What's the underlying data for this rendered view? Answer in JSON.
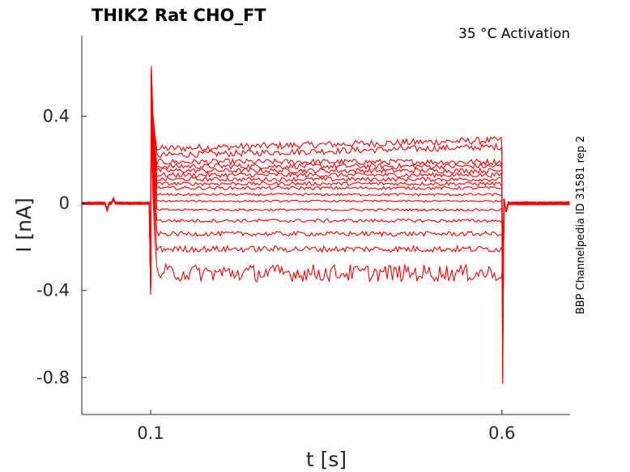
{
  "chart_data": {
    "type": "line",
    "title": "THIK2  Rat  CHO_FT",
    "subtitle": "35 °C  Activation",
    "xlabel": "t [s]",
    "ylabel": "I [nA]",
    "side_label": "BBP Channelpedia ID 31581 rep 2",
    "xlim": [
      0.002,
      0.697
    ],
    "ylim": [
      -0.97,
      0.77
    ],
    "x_ticks": [
      0.1,
      0.6
    ],
    "x_tick_labels": [
      "0.1",
      "0.6"
    ],
    "y_ticks": [
      0.4,
      0,
      -0.4,
      -0.8
    ],
    "y_tick_labels": [
      "0.4",
      "0",
      "-0.4",
      "-0.8"
    ],
    "step_start": 0.1,
    "step_end": 0.6,
    "baseline": 0,
    "series_steady_state_nA": [
      0.25,
      0.22,
      0.19,
      0.17,
      0.15,
      0.13,
      0.11,
      0.09,
      0.07,
      0.04,
      0.01,
      -0.03,
      -0.08,
      -0.14,
      -0.21,
      -0.32
    ],
    "transient_onset_peak": 0.63,
    "transient_onset_min": -0.42,
    "transient_offset_min": -0.83,
    "transient_offset_max": 0.02,
    "line_color": "#ff0000",
    "grid": false,
    "legend": "none"
  }
}
